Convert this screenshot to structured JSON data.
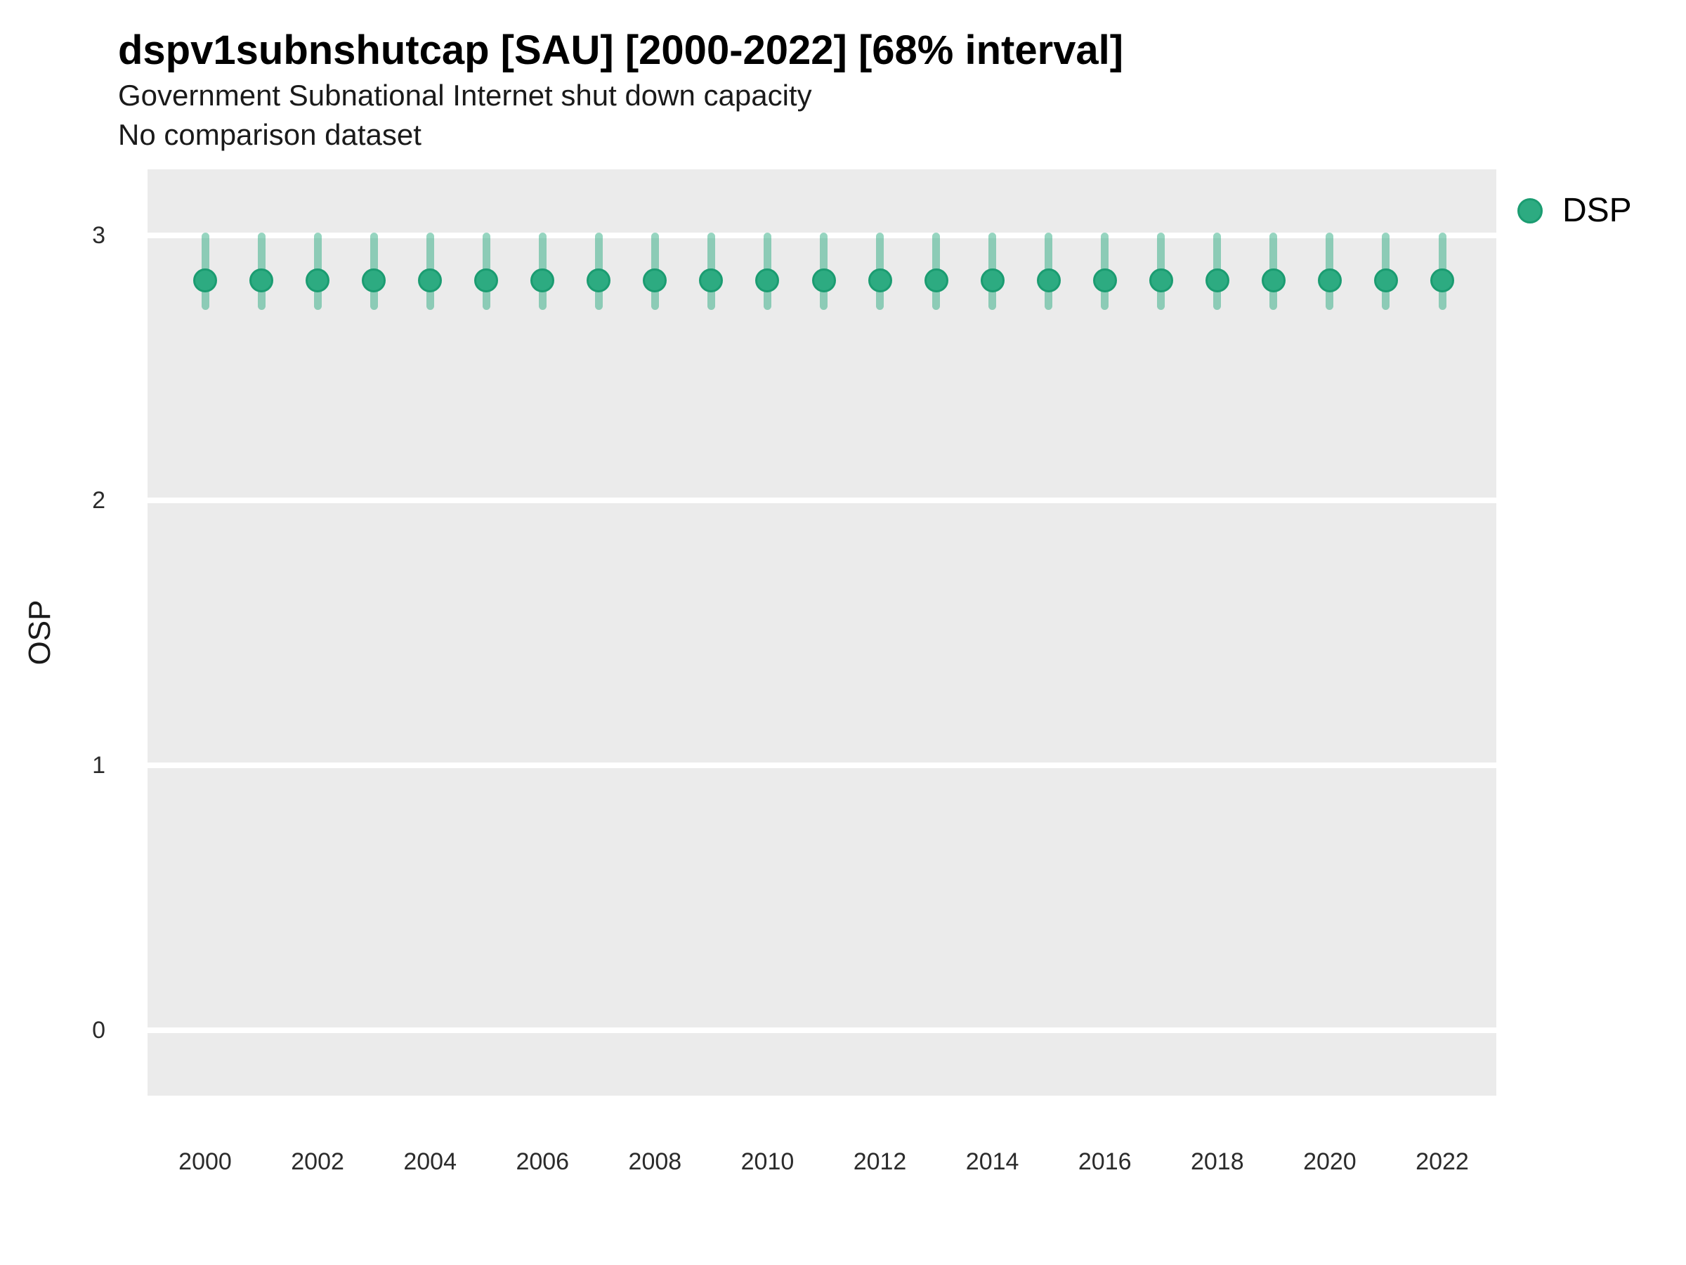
{
  "header": {
    "title": "dspv1subnshutcap [SAU] [2000-2022] [68% interval]",
    "subtitle1": "Government Subnational Internet shut down capacity",
    "subtitle2": "No comparison dataset"
  },
  "axes": {
    "y_label": "OSP",
    "y_ticks": [
      3,
      2,
      1,
      0
    ],
    "x_tick_labels": [
      2000,
      2002,
      2004,
      2006,
      2008,
      2010,
      2012,
      2014,
      2016,
      2018,
      2020,
      2022
    ]
  },
  "legend": {
    "position": "right",
    "items": [
      {
        "label": "DSP",
        "marker": "circle-icon",
        "color": "#2DAB81"
      }
    ]
  },
  "colors": {
    "point_fill": "#2DAB81",
    "point_stroke": "#1B9C71",
    "interval_fill": "rgba(45,171,129,0.5)",
    "panel_background": "#EBEBEB",
    "gridline": "#FFFFFF",
    "figure_background": "#FFFFFF",
    "text": "#000000"
  },
  "chart_data": {
    "type": "scatter",
    "subtype": "pointrange",
    "title": "dspv1subnshutcap [SAU] [2000-2022] [68% interval]",
    "subtitle": [
      "Government Subnational Internet shut down capacity",
      "No comparison dataset"
    ],
    "xlabel": "",
    "ylabel": "OSP",
    "ylim": [
      -0.25,
      3.25
    ],
    "xlim": [
      1998.9,
      2023.1
    ],
    "grid": "major-horizontal-only",
    "legend_position": "right",
    "interval_label": "68% interval",
    "series": [
      {
        "name": "DSP",
        "color": "#2DAB81",
        "points": [
          {
            "year": 2000,
            "value": 2.83,
            "low": 2.72,
            "high": 3.01
          },
          {
            "year": 2001,
            "value": 2.83,
            "low": 2.72,
            "high": 3.01
          },
          {
            "year": 2002,
            "value": 2.83,
            "low": 2.72,
            "high": 3.01
          },
          {
            "year": 2003,
            "value": 2.83,
            "low": 2.72,
            "high": 3.01
          },
          {
            "year": 2004,
            "value": 2.83,
            "low": 2.72,
            "high": 3.01
          },
          {
            "year": 2005,
            "value": 2.83,
            "low": 2.72,
            "high": 3.01
          },
          {
            "year": 2006,
            "value": 2.83,
            "low": 2.72,
            "high": 3.01
          },
          {
            "year": 2007,
            "value": 2.83,
            "low": 2.72,
            "high": 3.01
          },
          {
            "year": 2008,
            "value": 2.83,
            "low": 2.72,
            "high": 3.01
          },
          {
            "year": 2009,
            "value": 2.83,
            "low": 2.72,
            "high": 3.01
          },
          {
            "year": 2010,
            "value": 2.83,
            "low": 2.72,
            "high": 3.01
          },
          {
            "year": 2011,
            "value": 2.83,
            "low": 2.72,
            "high": 3.01
          },
          {
            "year": 2012,
            "value": 2.83,
            "low": 2.72,
            "high": 3.01
          },
          {
            "year": 2013,
            "value": 2.83,
            "low": 2.72,
            "high": 3.01
          },
          {
            "year": 2014,
            "value": 2.83,
            "low": 2.72,
            "high": 3.01
          },
          {
            "year": 2015,
            "value": 2.83,
            "low": 2.72,
            "high": 3.01
          },
          {
            "year": 2016,
            "value": 2.83,
            "low": 2.72,
            "high": 3.01
          },
          {
            "year": 2017,
            "value": 2.83,
            "low": 2.72,
            "high": 3.01
          },
          {
            "year": 2018,
            "value": 2.83,
            "low": 2.72,
            "high": 3.01
          },
          {
            "year": 2019,
            "value": 2.83,
            "low": 2.72,
            "high": 3.01
          },
          {
            "year": 2020,
            "value": 2.83,
            "low": 2.72,
            "high": 3.01
          },
          {
            "year": 2021,
            "value": 2.83,
            "low": 2.72,
            "high": 3.01
          },
          {
            "year": 2022,
            "value": 2.83,
            "low": 2.72,
            "high": 3.01
          }
        ]
      }
    ]
  }
}
